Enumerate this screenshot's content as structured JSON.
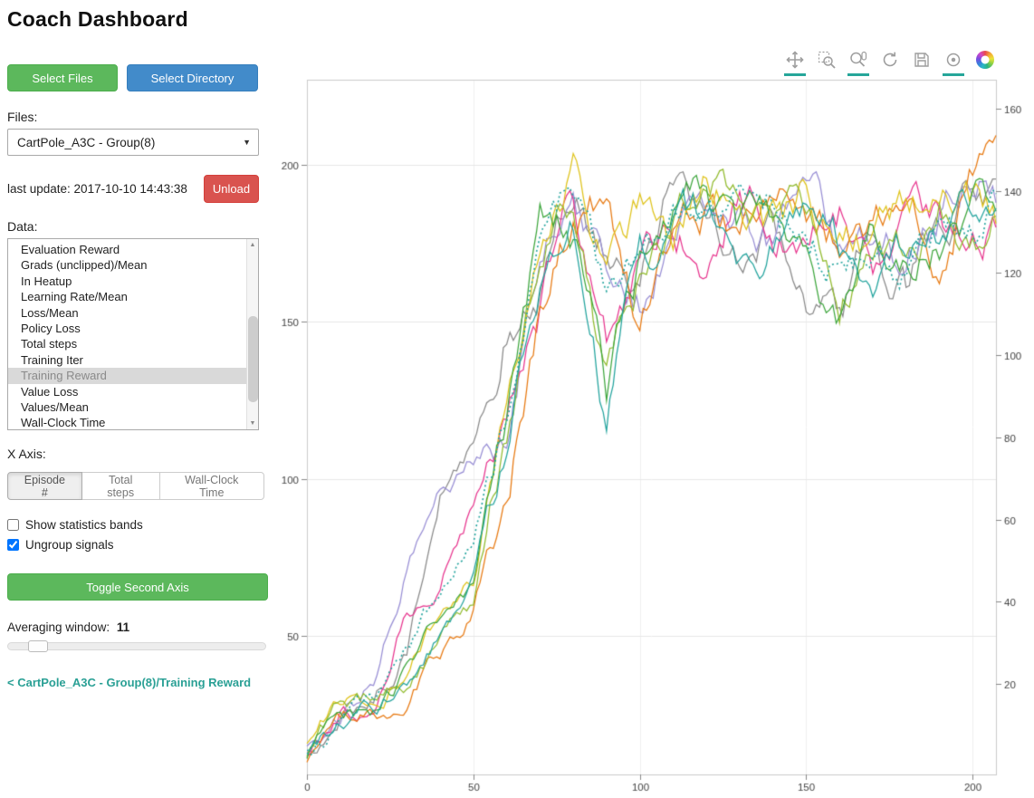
{
  "header": {
    "title": "Coach Dashboard"
  },
  "sidebar": {
    "select_files_label": "Select Files",
    "select_directory_label": "Select Directory",
    "files_label": "Files:",
    "files_selected": "CartPole_A3C - Group(8)",
    "last_update_text": "last update: 2017-10-10 14:43:38",
    "unload_label": "Unload",
    "data_label": "Data:",
    "data_items": [
      "Evaluation Reward",
      "Grads (unclipped)/Mean",
      "In Heatup",
      "Learning Rate/Mean",
      "Loss/Mean",
      "Policy Loss",
      "Total steps",
      "Training Iter",
      "Training Reward",
      "Value Loss",
      "Values/Mean",
      "Wall-Clock Time"
    ],
    "data_selected": "Training Reward",
    "x_axis_label": "X Axis:",
    "x_axis_options": [
      "Episode #",
      "Total steps",
      "Wall-Clock Time"
    ],
    "x_axis_selected": "Episode #",
    "checkboxes": [
      {
        "label": "Show statistics bands",
        "checked": false
      },
      {
        "label": "Ungroup signals",
        "checked": true
      }
    ],
    "toggle_second_axis_label": "Toggle Second Axis",
    "averaging_window_label": "Averaging window:",
    "averaging_window_value": "11",
    "breadcrumb": "< CartPole_A3C - Group(8)/Training Reward",
    "colors": {
      "green_button": "#5cb85c",
      "blue_button": "#428bca",
      "red_button": "#d9534f",
      "breadcrumb_link": "#2aa095",
      "active_tool_underline": "#26a69a"
    }
  },
  "plot_toolbar": {
    "tools": [
      {
        "name": "pan",
        "active": true
      },
      {
        "name": "box-zoom",
        "active": false
      },
      {
        "name": "wheel-zoom",
        "active": true
      },
      {
        "name": "reset",
        "active": false
      },
      {
        "name": "save",
        "active": false
      },
      {
        "name": "hover",
        "active": true
      },
      {
        "name": "bokeh-logo",
        "active": false
      }
    ]
  },
  "chart_data": {
    "type": "line",
    "title": "",
    "xlabel": "",
    "ylabel": "",
    "legend": "none",
    "grid": true,
    "xlim": [
      0,
      207
    ],
    "ylim_left": [
      6,
      227
    ],
    "ylim_right": [
      -2,
      167
    ],
    "x_ticks": [
      0,
      50,
      100,
      150,
      200
    ],
    "y_left_ticks": [
      50,
      100,
      150,
      200
    ],
    "y_right_ticks": [
      20,
      40,
      60,
      80,
      100,
      120,
      140,
      160
    ],
    "x_anchors": [
      0,
      10,
      20,
      30,
      40,
      50,
      60,
      70,
      80,
      90,
      100,
      110,
      120,
      130,
      140,
      150,
      160,
      170,
      180,
      190,
      200,
      210
    ],
    "series": [
      {
        "name": "gray",
        "color": "#8a8a8a",
        "dash": "solid",
        "values": [
          12,
          25,
          30,
          45,
          95,
          110,
          150,
          163,
          197,
          175,
          168,
          195,
          182,
          172,
          186,
          163,
          146,
          176,
          160,
          186,
          196,
          190
        ]
      },
      {
        "name": "purple",
        "color": "#988ed5",
        "dash": "solid",
        "values": [
          15,
          22,
          35,
          72,
          97,
          107,
          118,
          172,
          200,
          158,
          152,
          182,
          190,
          186,
          178,
          186,
          174,
          182,
          170,
          186,
          199,
          186
        ]
      },
      {
        "name": "magenta",
        "color": "#e8368f",
        "dash": "solid",
        "values": [
          13,
          28,
          24,
          60,
          66,
          92,
          126,
          152,
          186,
          150,
          172,
          180,
          176,
          190,
          179,
          176,
          186,
          170,
          176,
          181,
          176,
          186
        ]
      },
      {
        "name": "orange",
        "color": "#e87a12",
        "dash": "solid",
        "values": [
          10,
          20,
          24,
          31,
          45,
          60,
          100,
          152,
          181,
          186,
          150,
          171,
          186,
          176,
          190,
          186,
          176,
          181,
          186,
          171,
          200,
          205
        ]
      },
      {
        "name": "gold",
        "color": "#dfc31a",
        "dash": "solid",
        "values": [
          14,
          30,
          28,
          40,
          56,
          66,
          132,
          186,
          200,
          166,
          186,
          176,
          196,
          186,
          176,
          190,
          181,
          176,
          186,
          190,
          186,
          176
        ]
      },
      {
        "name": "yellow-green",
        "color": "#92bb2e",
        "dash": "solid",
        "values": [
          12,
          26,
          30,
          35,
          50,
          62,
          116,
          176,
          191,
          131,
          161,
          176,
          196,
          191,
          186,
          181,
          156,
          176,
          171,
          191,
          181,
          186
        ]
      },
      {
        "name": "green",
        "color": "#3da63c",
        "dash": "solid",
        "values": [
          11,
          24,
          28,
          38,
          55,
          68,
          121,
          181,
          176,
          126,
          166,
          181,
          186,
          176,
          181,
          176,
          151,
          181,
          166,
          176,
          186,
          191
        ]
      },
      {
        "name": "teal",
        "color": "#23a49e",
        "dash": "solid",
        "values": [
          13,
          22,
          27,
          36,
          52,
          70,
          118,
          166,
          181,
          121,
          171,
          176,
          181,
          171,
          176,
          181,
          171,
          166,
          176,
          171,
          181,
          186
        ]
      },
      {
        "name": "teal-dotted",
        "color": "#23a49e",
        "dash": "dotted",
        "values": [
          12,
          25,
          28,
          45,
          65,
          79,
          123,
          168,
          189,
          152,
          166,
          180,
          187,
          181,
          181,
          180,
          167,
          175,
          171,
          182,
          188,
          188
        ]
      }
    ]
  }
}
